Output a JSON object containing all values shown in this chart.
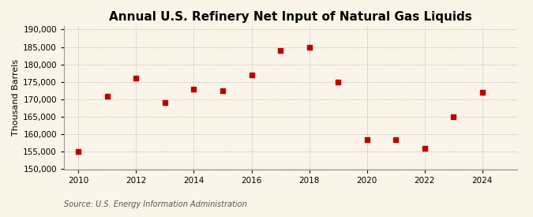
{
  "title": "Annual U.S. Refinery Net Input of Natural Gas Liquids",
  "ylabel": "Thousand Barrels",
  "source": "Source: U.S. Energy Information Administration",
  "years": [
    2010,
    2011,
    2012,
    2013,
    2014,
    2015,
    2016,
    2017,
    2018,
    2019,
    2020,
    2021,
    2022,
    2023,
    2024
  ],
  "values": [
    155000,
    171000,
    176000,
    169000,
    173000,
    172500,
    177000,
    184000,
    185000,
    175000,
    158500,
    158500,
    156000,
    165000,
    172000
  ],
  "marker_color": "#c00000",
  "marker": "s",
  "marker_size": 16,
  "background_color": "#faf5e8",
  "grid_color": "#aaaaaa",
  "xlim": [
    2009.5,
    2025.2
  ],
  "ylim": [
    150000,
    191000
  ],
  "xticks": [
    2010,
    2012,
    2014,
    2016,
    2018,
    2020,
    2022,
    2024
  ],
  "yticks": [
    150000,
    155000,
    160000,
    165000,
    170000,
    175000,
    180000,
    185000,
    190000
  ],
  "title_fontsize": 11,
  "label_fontsize": 8,
  "tick_fontsize": 7.5,
  "source_fontsize": 7
}
